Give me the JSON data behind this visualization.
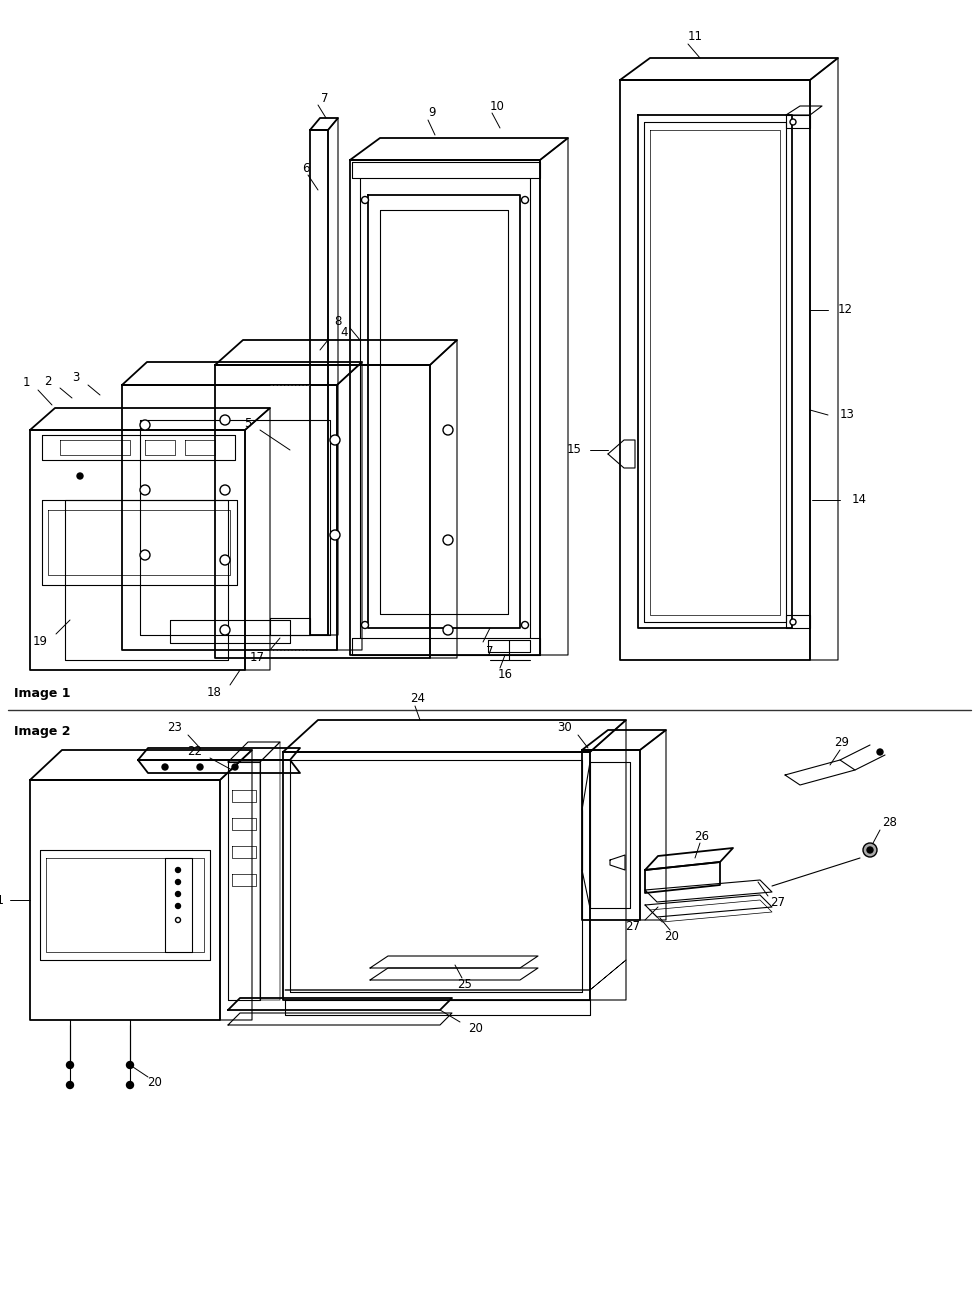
{
  "bg_color": "#ffffff",
  "line_color": "#000000",
  "label_color": "#000000",
  "image1_label": "Image 1",
  "image2_label": "Image 2"
}
